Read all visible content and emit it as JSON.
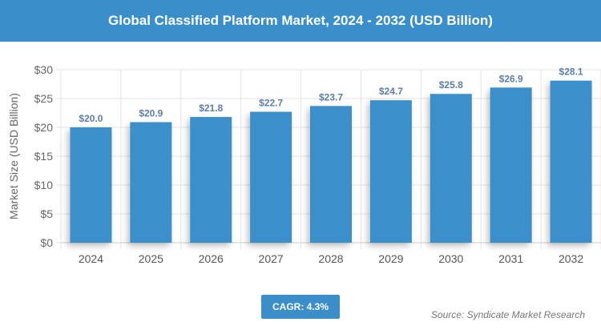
{
  "header": {
    "title": "Global Classified Platform Market, 2024 - 2032 (USD Billion)"
  },
  "chart_data": {
    "type": "bar",
    "title": "Global Classified Platform Market, 2024 - 2032 (USD Billion)",
    "categories": [
      "2024",
      "2025",
      "2026",
      "2027",
      "2028",
      "2029",
      "2030",
      "2031",
      "2032"
    ],
    "values": [
      20.0,
      20.9,
      21.8,
      22.7,
      23.7,
      24.7,
      25.8,
      26.9,
      28.1
    ],
    "data_labels": [
      "$20.0",
      "$20.9",
      "$21.8",
      "$22.7",
      "$23.7",
      "$24.7",
      "$25.8",
      "$26.9",
      "$28.1"
    ],
    "ylabel": "Market Size (USD Billion)",
    "xlabel": "",
    "ylim": [
      0,
      30
    ],
    "yticks": [
      0,
      5,
      10,
      15,
      20,
      25,
      30
    ],
    "ytick_labels": [
      "$0",
      "$5",
      "$10",
      "$15",
      "$20",
      "$25",
      "$30"
    ],
    "grid": true,
    "bar_color": "#3a8fcb",
    "label_color": "#5b7ea6"
  },
  "cagr": "CAGR: 4.3%",
  "source": "Source: Syndicate Market Research"
}
